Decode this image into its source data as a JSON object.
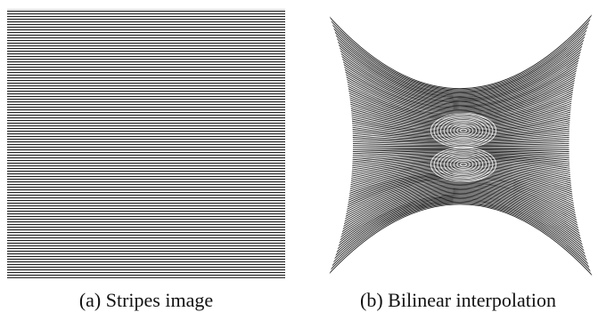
{
  "figure": {
    "panels": [
      {
        "caption": "(a) Stripes image"
      },
      {
        "caption": "(b) Bilinear interpolation"
      }
    ]
  }
}
